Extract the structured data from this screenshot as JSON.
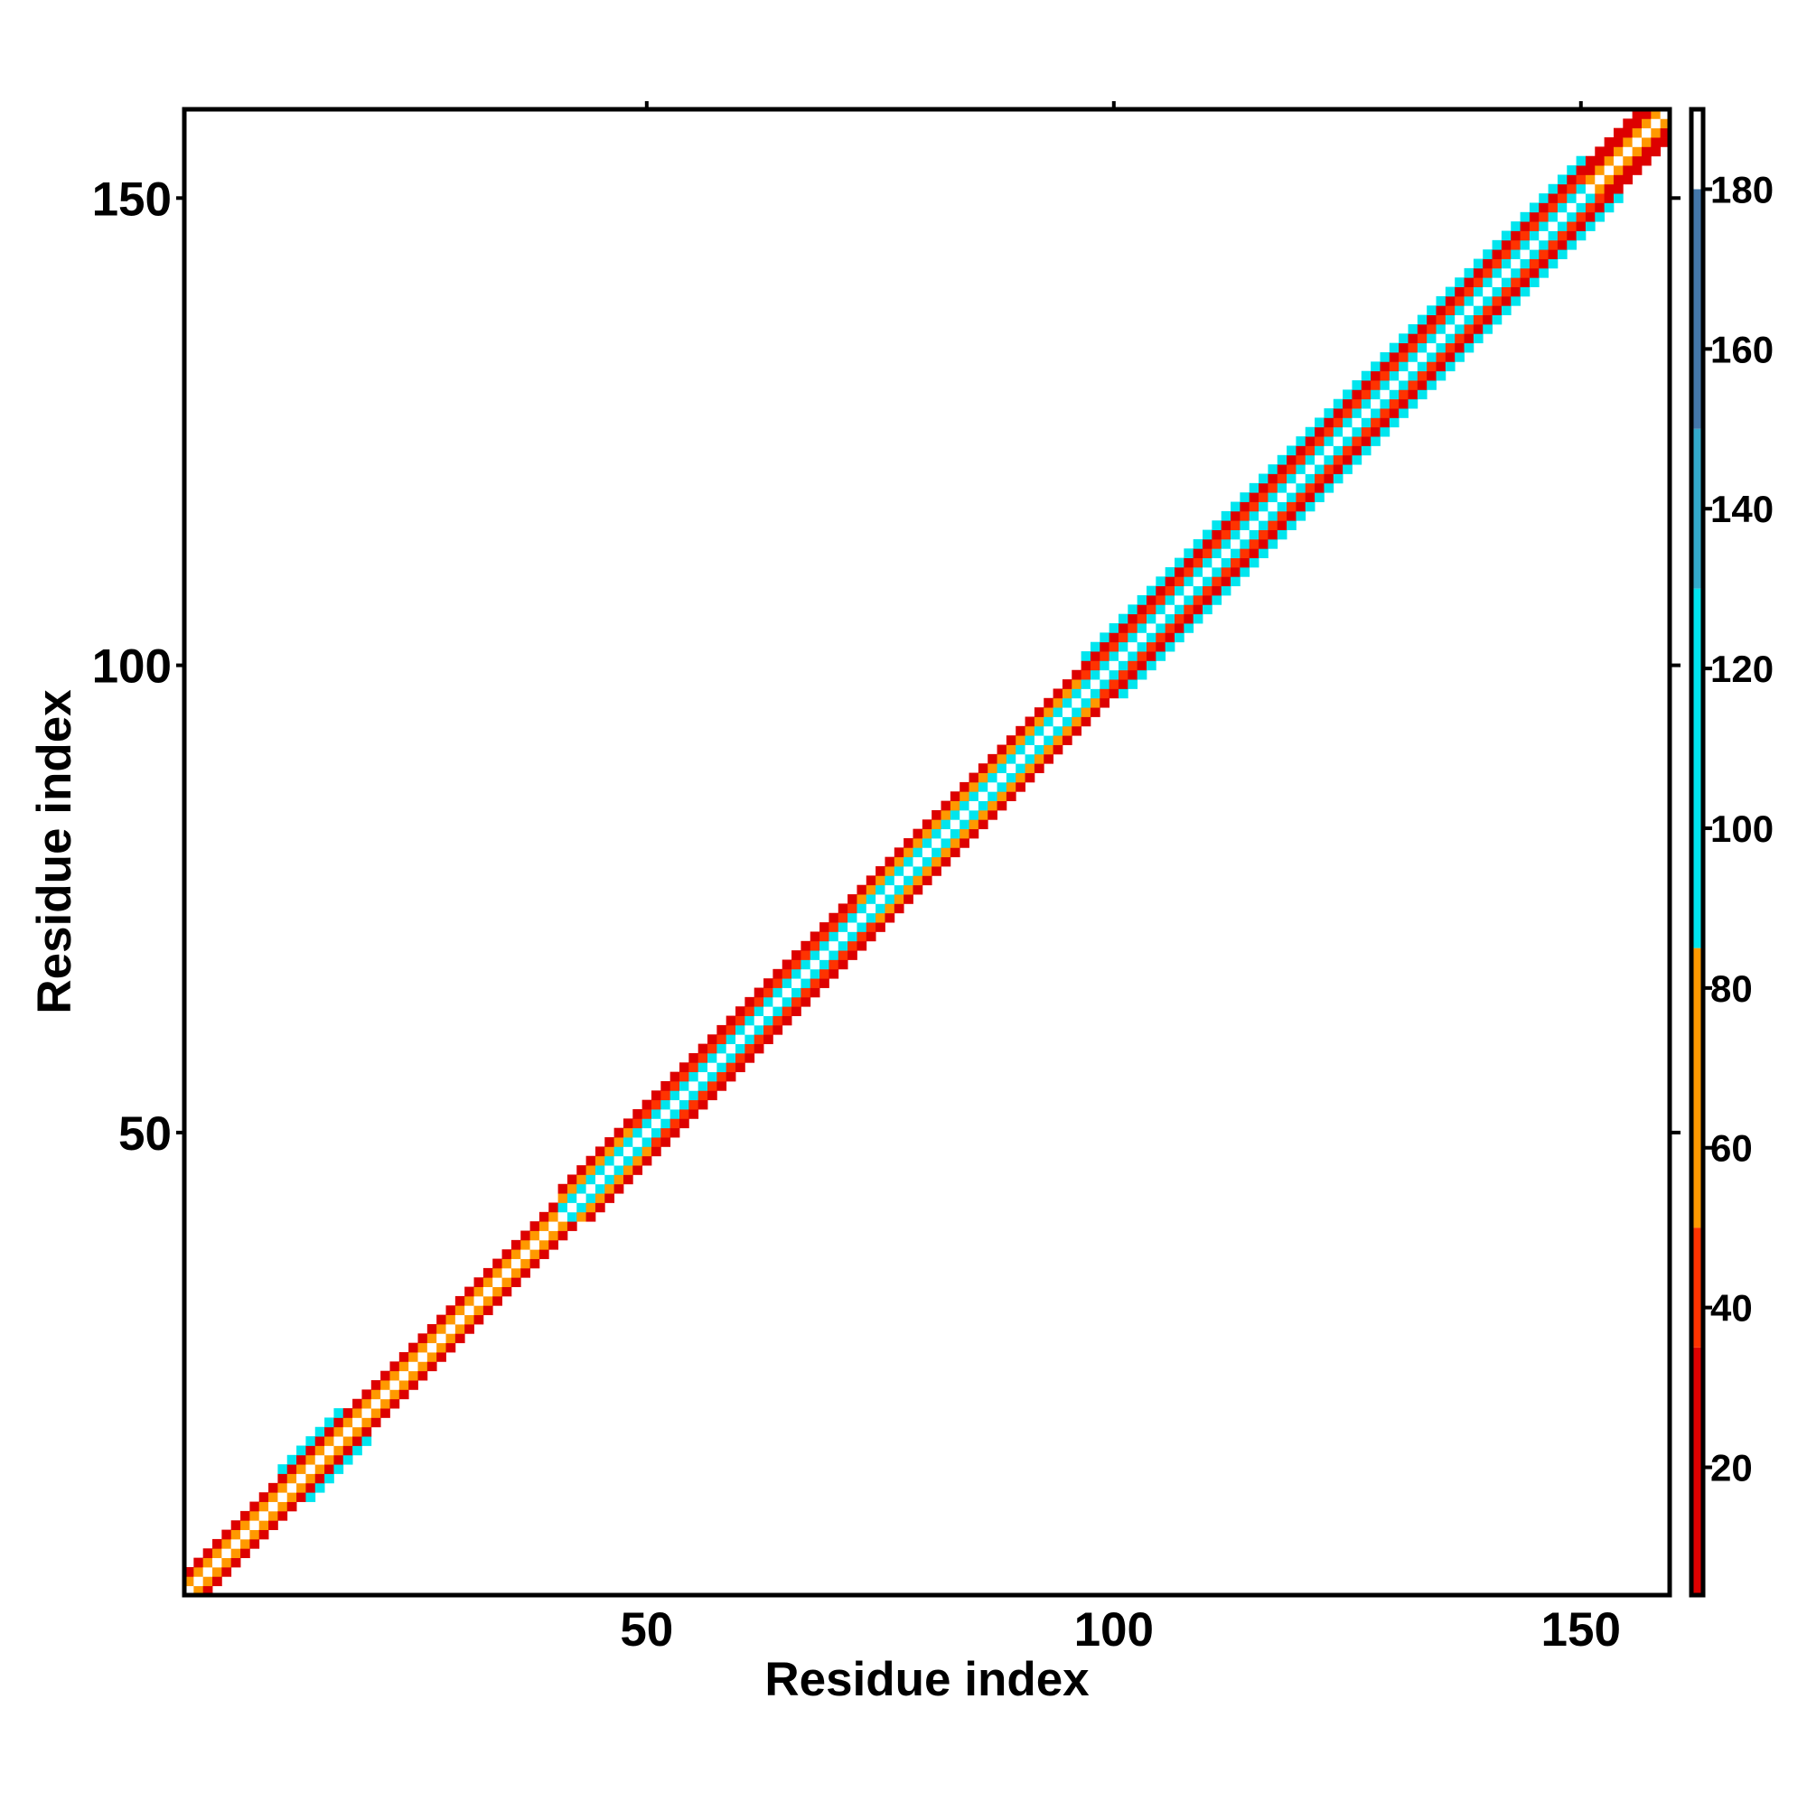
{
  "chart_data": {
    "type": "heatmap",
    "title": "",
    "xlabel": "Residue index",
    "ylabel": "Residue index",
    "n_residues": 159,
    "xlim": [
      0.5,
      159.5
    ],
    "ylim": [
      0.5,
      159.5
    ],
    "xticks": [
      50,
      100,
      150
    ],
    "yticks": [
      50,
      100,
      150
    ],
    "grid": false,
    "colorbar": {
      "label": "",
      "range": [
        4,
        190
      ],
      "ticks": [
        20,
        40,
        60,
        80,
        100,
        120,
        140,
        160,
        180
      ],
      "bands": [
        {
          "from": 4,
          "to": 35,
          "color": "#dd0000"
        },
        {
          "from": 35,
          "to": 50,
          "color": "#ff3300"
        },
        {
          "from": 50,
          "to": 85,
          "color": "#ff9900"
        },
        {
          "from": 85,
          "to": 130,
          "color": "#00e5ee"
        },
        {
          "from": 130,
          "to": 150,
          "color": "#33aacc"
        },
        {
          "from": 150,
          "to": 180,
          "color": "#4477aa"
        },
        {
          "from": 180,
          "to": 190,
          "color": "#ffffff"
        }
      ]
    },
    "band_profile": [
      {
        "from": 1,
        "to": 10,
        "half_width": 2,
        "offsets": {
          "1": 80,
          "2": 30
        }
      },
      {
        "from": 11,
        "to": 17,
        "half_width": 3,
        "offsets": {
          "1": 60,
          "2": 35,
          "3": 100
        }
      },
      {
        "from": 18,
        "to": 40,
        "half_width": 2,
        "offsets": {
          "1": 60,
          "2": 30
        }
      },
      {
        "from": 41,
        "to": 48,
        "half_width": 3,
        "offsets": {
          "1": 95,
          "2": 65,
          "3": 30
        }
      },
      {
        "from": 49,
        "to": 60,
        "half_width": 3,
        "offsets": {
          "1": 100,
          "2": 45,
          "3": 25
        }
      },
      {
        "from": 61,
        "to": 72,
        "half_width": 3,
        "offsets": {
          "1": 90,
          "2": 45,
          "3": 25
        }
      },
      {
        "from": 73,
        "to": 96,
        "half_width": 3,
        "offsets": {
          "1": 110,
          "2": 60,
          "3": 30
        }
      },
      {
        "from": 97,
        "to": 150,
        "half_width": 4,
        "offsets": {
          "1": 110,
          "2": 40,
          "3": 25,
          "4": 100
        }
      },
      {
        "from": 151,
        "to": 159,
        "half_width": 3,
        "offsets": {
          "1": 60,
          "2": 30,
          "3": 25
        }
      }
    ],
    "diagonal_value": 190
  }
}
